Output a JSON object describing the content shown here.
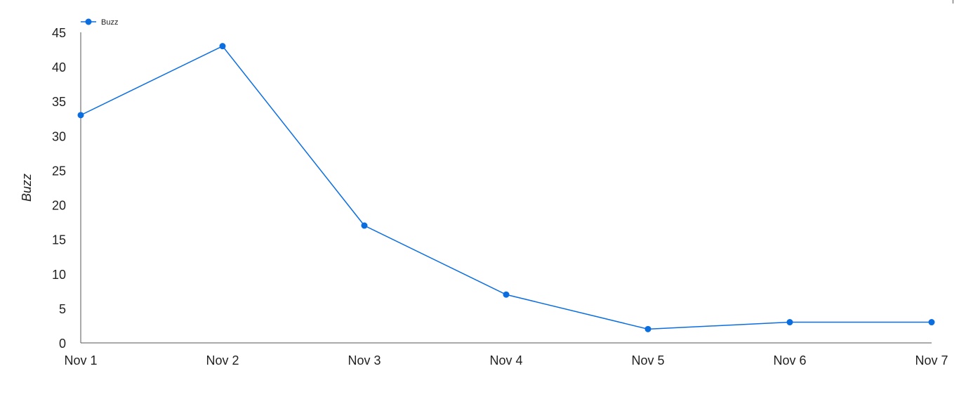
{
  "chart_data": {
    "type": "line",
    "categories": [
      "Nov 1",
      "Nov 2",
      "Nov 3",
      "Nov 4",
      "Nov 5",
      "Nov 6",
      "Nov 7"
    ],
    "series": [
      {
        "name": "Buzz",
        "values": [
          33,
          43,
          17,
          7,
          2,
          3,
          3
        ],
        "color": "#0a6ee1"
      }
    ],
    "xlabel": "",
    "ylabel": "Buzz",
    "ylim": [
      0,
      45
    ],
    "yticks": [
      0,
      5,
      10,
      15,
      20,
      25,
      30,
      35,
      40,
      45
    ],
    "grid": false,
    "legend_position": "top-left"
  }
}
